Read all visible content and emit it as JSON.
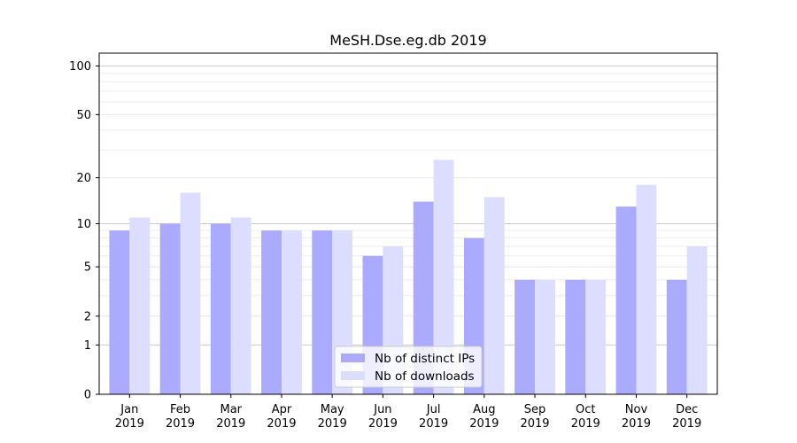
{
  "chart_data": {
    "type": "bar",
    "title": "MeSH.Dse.eg.db 2019",
    "xlabel": "",
    "ylabel": "",
    "y_scale": "log(1+y)",
    "ylim": [
      0,
      120
    ],
    "y_ticks": [
      0,
      1,
      2,
      5,
      10,
      20,
      50,
      100
    ],
    "grid": true,
    "legend_position": "bottom-center",
    "categories": [
      "Jan\n2019",
      "Feb\n2019",
      "Mar\n2019",
      "Apr\n2019",
      "May\n2019",
      "Jun\n2019",
      "Jul\n2019",
      "Aug\n2019",
      "Sep\n2019",
      "Oct\n2019",
      "Nov\n2019",
      "Dec\n2019"
    ],
    "series": [
      {
        "name": "Nb of distinct IPs",
        "color": "#aaaaff",
        "values": [
          9,
          10,
          10,
          9,
          9,
          6,
          14,
          8,
          4,
          4,
          13,
          4
        ]
      },
      {
        "name": "Nb of downloads",
        "color": "#ddddff",
        "values": [
          11,
          16,
          11,
          9,
          9,
          7,
          26,
          15,
          4,
          4,
          18,
          7
        ]
      }
    ]
  }
}
